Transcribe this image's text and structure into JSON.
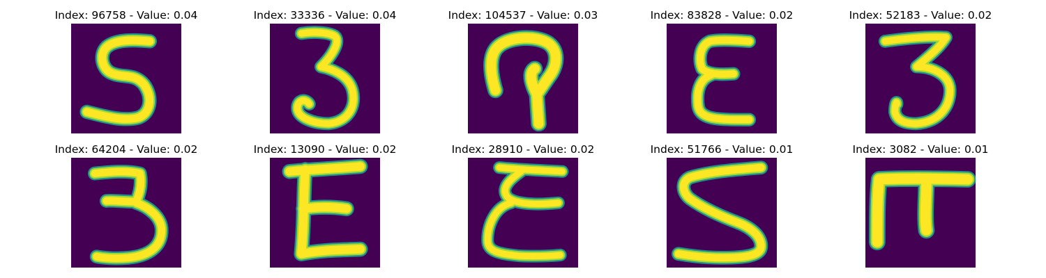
{
  "panels": [
    {
      "index_value": "Index: 96758 - Value: 0.04",
      "glyph": "5"
    },
    {
      "index_value": "Index: 33336 - Value: 0.04",
      "glyph": "3"
    },
    {
      "index_value": "Index: 104537 - Value: 0.03",
      "glyph": "hook"
    },
    {
      "index_value": "Index: 83828 - Value: 0.02",
      "glyph": "epsilon"
    },
    {
      "index_value": "Index: 52183 - Value: 0.02",
      "glyph": "3"
    },
    {
      "index_value": "Index: 64204 - Value: 0.02",
      "glyph": "3"
    },
    {
      "index_value": "Index: 13090 - Value: 0.02",
      "glyph": "E"
    },
    {
      "index_value": "Index: 28910 - Value: 0.02",
      "glyph": "epsilon"
    },
    {
      "index_value": "Index: 51766 - Value: 0.01",
      "glyph": "5"
    },
    {
      "index_value": "Index: 3082 - Value: 0.01",
      "glyph": "pi"
    }
  ],
  "colors": {
    "background": "#440154",
    "stroke_edge": "#21918c",
    "stroke_core": "#fde725",
    "stroke_mid": "#a0da39"
  }
}
